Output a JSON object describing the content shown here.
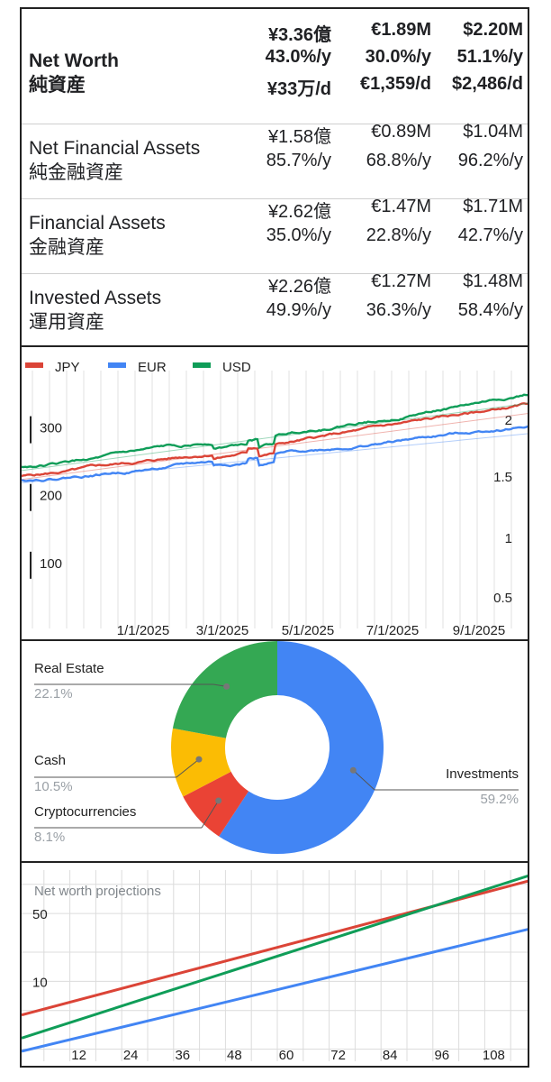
{
  "summary": {
    "rows": [
      {
        "name_en": "Net Worth",
        "name_ja": "純資産",
        "values": [
          [
            "¥3.36億",
            "€1.89M",
            "$2.20M"
          ],
          [
            "43.0%/y",
            "30.0%/y",
            "51.1%/y"
          ],
          [
            "¥33万/d",
            "€1,359/d",
            "$2,486/d"
          ]
        ]
      },
      {
        "name_en": "Net Financial Assets",
        "name_ja": "純金融資産",
        "values": [
          [
            "¥1.58億",
            "€0.89M",
            "$1.04M"
          ],
          [
            "85.7%/y",
            "68.8%/y",
            "96.2%/y"
          ]
        ]
      },
      {
        "name_en": "Financial Assets",
        "name_ja": "金融資産",
        "values": [
          [
            "¥2.62億",
            "€1.47M",
            "$1.71M"
          ],
          [
            "35.0%/y",
            "22.8%/y",
            "42.7%/y"
          ]
        ]
      },
      {
        "name_en": "Invested Assets",
        "name_ja": "運用資産",
        "values": [
          [
            "¥2.26億",
            "€1.27M",
            "$1.48M"
          ],
          [
            "49.9%/y",
            "36.3%/y",
            "58.4%/y"
          ]
        ]
      }
    ]
  },
  "colors": {
    "jpy": "#db4437",
    "eur": "#4285f4",
    "usd": "#0f9d58",
    "cash": "#f4b400"
  },
  "chart_data": [
    {
      "type": "line",
      "legend_position": "top-left",
      "grid": true,
      "x_ticks": [
        "1/1/2025",
        "3/1/2025",
        "5/1/2025",
        "7/1/2025",
        "9/1/2025"
      ],
      "y_left_ticks": [
        "100",
        "200",
        "300"
      ],
      "y_right_ticks": [
        "0.5",
        "1",
        "1.5",
        "2"
      ],
      "y_left_range": [
        0,
        370
      ],
      "series": [
        {
          "name": "JPY",
          "color": "#db4437",
          "start": 225,
          "end": 330
        },
        {
          "name": "EUR",
          "color": "#4285f4",
          "start": 220,
          "end": 300
        },
        {
          "name": "USD",
          "color": "#0f9d58",
          "start": 238,
          "end": 345
        }
      ]
    },
    {
      "type": "pie",
      "slices": [
        {
          "label": "Investments",
          "value": 59.2,
          "pct": "59.2%",
          "color": "#4285f4"
        },
        {
          "label": "Cryptocurrencies",
          "value": 8.1,
          "pct": "8.1%",
          "color": "#ea4335"
        },
        {
          "label": "Cash",
          "value": 10.5,
          "pct": "10.5%",
          "color": "#fbbc04"
        },
        {
          "label": "Real Estate",
          "value": 22.1,
          "pct": "22.1%",
          "color": "#34a853"
        }
      ]
    },
    {
      "type": "line",
      "title": "Net worth projections",
      "x_ticks": [
        "12",
        "24",
        "36",
        "48",
        "60",
        "72",
        "84",
        "96",
        "108"
      ],
      "y_ticks": [
        "10",
        "50"
      ],
      "x_range": [
        0,
        120
      ],
      "y_log": true,
      "series": [
        {
          "color": "#db4437",
          "start": 4.5,
          "end": 110
        },
        {
          "color": "#0f9d58",
          "start": 2.6,
          "end": 125
        },
        {
          "color": "#4285f4",
          "start": 1.9,
          "end": 35
        }
      ]
    }
  ]
}
